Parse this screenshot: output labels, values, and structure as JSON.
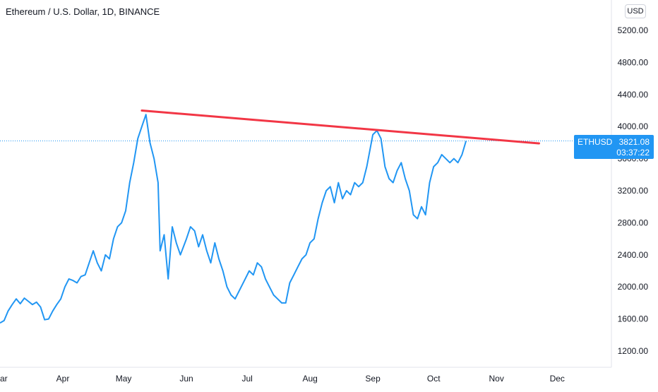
{
  "header": {
    "title": "Ethereum / U.S. Dollar, 1D, BINANCE",
    "currency": "USD"
  },
  "price_tag": {
    "symbol": "ETHUSD",
    "price": "3821.08",
    "countdown": "03:37:22"
  },
  "colors": {
    "line": "#2196f3",
    "trendline": "#f23645",
    "price_tag_bg": "#2196f3",
    "axis_text": "#131722",
    "border": "#d1d4dc"
  },
  "chart_data": {
    "type": "line",
    "symbol": "ETHUSD",
    "x_labels": [
      "ar",
      "Apr",
      "May",
      "Jun",
      "Jul",
      "Aug",
      "Sep",
      "Oct",
      "Nov",
      "Dec"
    ],
    "y_ticks": [
      "5200.00",
      "4800.00",
      "4400.00",
      "4000.00",
      "3600.00",
      "3200.00",
      "2800.00",
      "2400.00",
      "2000.00",
      "1600.00",
      "1200.00"
    ],
    "ylim": [
      1000,
      5400
    ],
    "xlim": [
      "2021-03-01",
      "2021-12-31"
    ],
    "grid": false,
    "current_price": 3821.08,
    "series": [
      {
        "x": [
          "2021-03-01",
          "2021-03-03",
          "2021-03-05",
          "2021-03-07",
          "2021-03-09",
          "2021-03-11",
          "2021-03-13",
          "2021-03-15",
          "2021-03-17",
          "2021-03-19",
          "2021-03-21",
          "2021-03-23",
          "2021-03-25",
          "2021-03-27",
          "2021-03-29",
          "2021-03-31",
          "2021-04-02",
          "2021-04-04",
          "2021-04-06",
          "2021-04-08",
          "2021-04-10",
          "2021-04-12",
          "2021-04-14",
          "2021-04-16",
          "2021-04-18",
          "2021-04-20",
          "2021-04-22",
          "2021-04-24",
          "2021-04-26",
          "2021-04-28",
          "2021-04-30",
          "2021-05-02",
          "2021-05-04",
          "2021-05-06",
          "2021-05-08",
          "2021-05-10",
          "2021-05-12",
          "2021-05-14",
          "2021-05-16",
          "2021-05-18",
          "2021-05-19",
          "2021-05-21",
          "2021-05-23",
          "2021-05-25",
          "2021-05-27",
          "2021-05-29",
          "2021-06-01",
          "2021-06-03",
          "2021-06-05",
          "2021-06-07",
          "2021-06-09",
          "2021-06-11",
          "2021-06-13",
          "2021-06-15",
          "2021-06-17",
          "2021-06-19",
          "2021-06-21",
          "2021-06-23",
          "2021-06-25",
          "2021-06-27",
          "2021-06-30",
          "2021-07-02",
          "2021-07-04",
          "2021-07-06",
          "2021-07-08",
          "2021-07-10",
          "2021-07-12",
          "2021-07-14",
          "2021-07-16",
          "2021-07-18",
          "2021-07-20",
          "2021-07-22",
          "2021-07-24",
          "2021-07-26",
          "2021-07-28",
          "2021-07-30",
          "2021-08-01",
          "2021-08-03",
          "2021-08-05",
          "2021-08-07",
          "2021-08-09",
          "2021-08-11",
          "2021-08-13",
          "2021-08-15",
          "2021-08-17",
          "2021-08-19",
          "2021-08-21",
          "2021-08-23",
          "2021-08-25",
          "2021-08-27",
          "2021-08-29",
          "2021-09-01",
          "2021-09-03",
          "2021-09-05",
          "2021-09-07",
          "2021-09-09",
          "2021-09-11",
          "2021-09-13",
          "2021-09-15",
          "2021-09-17",
          "2021-09-19",
          "2021-09-21",
          "2021-09-23",
          "2021-09-25",
          "2021-09-27",
          "2021-09-29",
          "2021-10-01",
          "2021-10-03",
          "2021-10-05",
          "2021-10-07",
          "2021-10-09",
          "2021-10-11",
          "2021-10-13",
          "2021-10-15",
          "2021-10-17"
        ],
        "y": [
          1550,
          1580,
          1700,
          1780,
          1850,
          1790,
          1860,
          1820,
          1780,
          1810,
          1750,
          1590,
          1600,
          1700,
          1780,
          1850,
          2000,
          2100,
          2080,
          2050,
          2130,
          2150,
          2300,
          2450,
          2300,
          2200,
          2400,
          2350,
          2600,
          2750,
          2800,
          2950,
          3300,
          3550,
          3850,
          4000,
          4150,
          3800,
          3600,
          3300,
          2450,
          2650,
          2100,
          2750,
          2550,
          2400,
          2600,
          2750,
          2700,
          2500,
          2650,
          2450,
          2300,
          2550,
          2350,
          2200,
          2000,
          1900,
          1850,
          1950,
          2100,
          2200,
          2150,
          2300,
          2250,
          2100,
          2000,
          1900,
          1850,
          1800,
          1800,
          2050,
          2150,
          2250,
          2350,
          2400,
          2550,
          2600,
          2850,
          3050,
          3200,
          3250,
          3050,
          3300,
          3100,
          3200,
          3150,
          3300,
          3250,
          3300,
          3500,
          3900,
          3950,
          3850,
          3500,
          3350,
          3300,
          3450,
          3550,
          3350,
          3200,
          2900,
          2850,
          3000,
          2900,
          3300,
          3500,
          3550,
          3650,
          3600,
          3550,
          3600,
          3550,
          3650,
          3821
        ]
      }
    ],
    "trendline": {
      "points": [
        [
          "2021-05-10",
          4200
        ],
        [
          "2021-11-22",
          3790
        ]
      ]
    }
  }
}
